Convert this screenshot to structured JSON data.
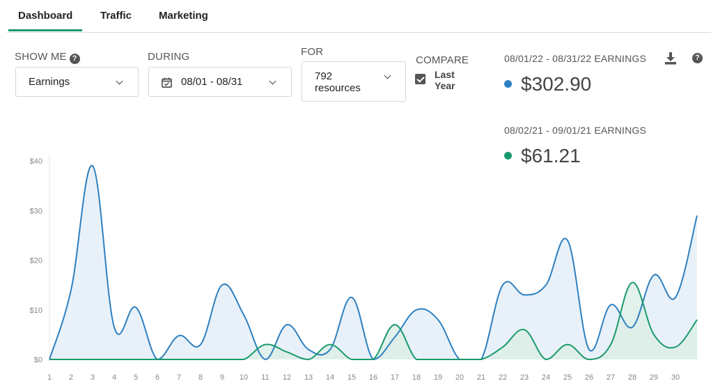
{
  "tabs": [
    {
      "label": "Dashboard",
      "active": true
    },
    {
      "label": "Traffic",
      "active": false
    },
    {
      "label": "Marketing",
      "active": false
    }
  ],
  "filters": {
    "show_me": {
      "label": "SHOW ME",
      "value": "Earnings",
      "help_icon": "question-circle-icon"
    },
    "during": {
      "label": "DURING",
      "value": "08/01 - 08/31",
      "icon": "calendar-icon"
    },
    "for": {
      "label": "FOR",
      "value_line1": "792",
      "value_line2": "resources"
    },
    "compare": {
      "label": "COMPARE",
      "checked": true,
      "option_line1": "Last",
      "option_line2": "Year"
    }
  },
  "earnings": {
    "current": {
      "label": "08/01/22 - 08/31/22 EARNINGS",
      "value": "$302.90",
      "color": "#2e7fbf"
    },
    "previous": {
      "label": "08/02/21 - 09/01/21 EARNINGS",
      "value": "$61.21",
      "color": "#1a9a6c"
    }
  },
  "chart_data": {
    "type": "area",
    "x": [
      1,
      2,
      3,
      4,
      5,
      6,
      7,
      8,
      9,
      10,
      11,
      12,
      13,
      14,
      15,
      16,
      17,
      18,
      19,
      20,
      21,
      22,
      23,
      24,
      25,
      26,
      27,
      28,
      29,
      30,
      31
    ],
    "x_tick_labels": [
      "1",
      "2",
      "3",
      "4",
      "5",
      "6",
      "7",
      "8",
      "9",
      "10",
      "11",
      "12",
      "13",
      "14",
      "15",
      "16",
      "17",
      "18",
      "19",
      "20",
      "21",
      "22",
      "23",
      "24",
      "25",
      "26",
      "27",
      "28",
      "29",
      "30"
    ],
    "y_tick_labels": [
      "$0",
      "$10",
      "$20",
      "$30",
      "$40"
    ],
    "ylim": [
      0,
      40
    ],
    "series": [
      {
        "values": [
          0,
          14,
          39,
          6.5,
          10.5,
          0,
          4.8,
          3,
          15,
          9,
          0,
          7,
          2,
          2,
          12.5,
          0,
          4.5,
          10,
          8,
          0,
          0,
          15,
          13,
          15,
          24,
          2,
          11,
          6.5,
          17,
          12.5,
          29
        ],
        "color": "#2e7fbf",
        "fill": "#e8f1f9"
      },
      {
        "values": [
          0,
          0,
          0,
          0,
          0,
          0,
          0,
          0,
          0,
          0,
          3,
          1.5,
          0,
          3,
          0,
          0,
          7,
          0,
          0,
          0,
          0,
          2.5,
          6,
          0,
          3,
          0,
          3,
          15.5,
          5,
          2.5,
          8
        ],
        "color": "#1a9a6c",
        "fill": "#dcefe7"
      }
    ]
  }
}
